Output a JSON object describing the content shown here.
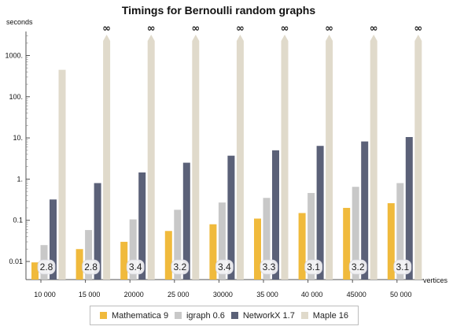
{
  "chart_data": {
    "type": "bar",
    "title": "Timings for Bernoulli random graphs",
    "ylabel": "seconds",
    "xlabel": "vertices",
    "y_scale": "log",
    "ylim": [
      0.003,
      3000
    ],
    "y_ticks": [
      0.01,
      0.1,
      1,
      10,
      100,
      1000
    ],
    "y_tick_labels": [
      "0.01",
      "0.1",
      "1.",
      "10.",
      "100.",
      "1000."
    ],
    "categories": [
      "10 000",
      "15 000",
      "20000",
      "25 000",
      "30000",
      "35 000",
      "40 000",
      "45000",
      "50 000"
    ],
    "series": [
      {
        "name": "Mathematica 9",
        "color": "#f0ba3c",
        "values": [
          0.0095,
          0.02,
          0.03,
          0.055,
          0.08,
          0.11,
          0.15,
          0.2,
          0.26
        ]
      },
      {
        "name": "igraph 0.6",
        "color": "#c8c8c8",
        "values": [
          0.025,
          0.058,
          0.105,
          0.18,
          0.27,
          0.35,
          0.46,
          0.65,
          0.8
        ]
      },
      {
        "name": "NetworkX 1.7",
        "color": "#5b6178",
        "values": [
          0.32,
          0.8,
          1.45,
          2.5,
          3.7,
          5.0,
          6.4,
          8.2,
          10.5
        ]
      },
      {
        "name": "Maple 16",
        "color": "#e0dacb",
        "values": [
          450,
          null,
          null,
          null,
          null,
          null,
          null,
          null,
          null
        ]
      }
    ],
    "infinite_marker": "∞",
    "infinite_marker_categories": [
      1,
      2,
      3,
      4,
      5,
      6,
      7,
      8
    ],
    "bar_labels": [
      "2.8",
      "2.8",
      "3.4",
      "3.2",
      "3.4",
      "3.3",
      "3.1",
      "3.2",
      "3.1"
    ],
    "legend_position": "bottom",
    "grid": false
  }
}
